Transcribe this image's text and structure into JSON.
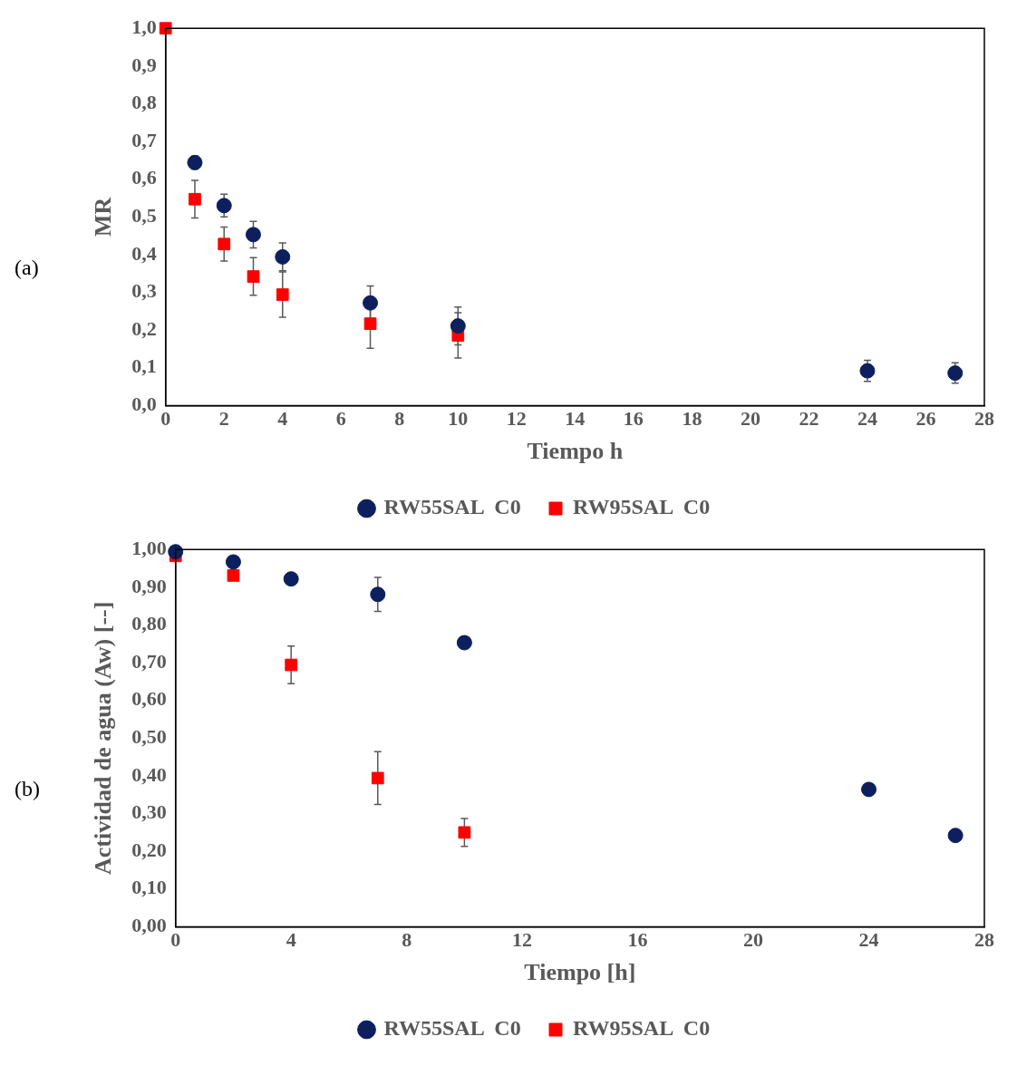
{
  "chart_data": [
    {
      "type": "scatter",
      "xlabel": "Tiempo h",
      "ylabel": "MR",
      "annotations": [
        "(a)"
      ],
      "legend": "bottom",
      "grid": false,
      "xlim": [
        0,
        28
      ],
      "xticks": [
        0,
        2,
        4,
        6,
        8,
        10,
        12,
        14,
        16,
        18,
        20,
        22,
        24,
        26,
        28
      ],
      "ylim": [
        0,
        1
      ],
      "yticks": [
        {
          "value": 0,
          "label": "0,0"
        },
        {
          "value": 0.1,
          "label": "0,1"
        },
        {
          "value": 0.2,
          "label": "0,2"
        },
        {
          "value": 0.3,
          "label": "0,3"
        },
        {
          "value": 0.4,
          "label": "0,4"
        },
        {
          "value": 0.5,
          "label": "0,5"
        },
        {
          "value": 0.6,
          "label": "0,6"
        },
        {
          "value": 0.7,
          "label": "0,7"
        },
        {
          "value": 0.8,
          "label": "0,8"
        },
        {
          "value": 0.9,
          "label": "0,9"
        },
        {
          "value": 1,
          "label": "1,0"
        }
      ],
      "series": [
        {
          "name": "RW55SAL  C0",
          "color": "#0d1f5c",
          "marker": "circle",
          "x": [
            1,
            2,
            3,
            4,
            7,
            10,
            24,
            27
          ],
          "values": [
            0.644,
            0.53,
            0.453,
            0.394,
            0.272,
            0.211,
            0.092,
            0.086
          ],
          "errors": [
            0.017,
            0.03,
            0.035,
            0.037,
            0.045,
            0.05,
            0.028,
            0.027
          ]
        },
        {
          "name": "RW95SAL  C0",
          "color": "#ff0000",
          "marker": "square",
          "x": [
            0,
            1,
            2,
            3,
            4,
            7,
            10
          ],
          "values": [
            1.0,
            0.547,
            0.428,
            0.342,
            0.294,
            0.217,
            0.186
          ],
          "errors": [
            null,
            0.05,
            0.045,
            0.05,
            0.06,
            0.065,
            0.06
          ]
        }
      ]
    },
    {
      "type": "scatter",
      "xlabel": "Tiempo [h]",
      "ylabel": "Actividad de agua (Aw) [--]",
      "annotations": [
        "(b)"
      ],
      "legend": "bottom",
      "grid": false,
      "x": [
        0,
        2,
        4,
        7,
        10,
        24,
        27
      ],
      "xlim": [
        0,
        28
      ],
      "xticks": [
        0,
        4,
        8,
        12,
        16,
        20,
        24,
        28
      ],
      "ylim": [
        0,
        1
      ],
      "yticks": [
        {
          "value": 0,
          "label": "0,00"
        },
        {
          "value": 0.1,
          "label": "0,10"
        },
        {
          "value": 0.2,
          "label": "0,20"
        },
        {
          "value": 0.3,
          "label": "0,30"
        },
        {
          "value": 0.4,
          "label": "0,40"
        },
        {
          "value": 0.5,
          "label": "0,50"
        },
        {
          "value": 0.6,
          "label": "0,60"
        },
        {
          "value": 0.7,
          "label": "0,70"
        },
        {
          "value": 0.8,
          "label": "0,80"
        },
        {
          "value": 0.9,
          "label": "0,90"
        },
        {
          "value": 1,
          "label": "1,00"
        }
      ],
      "series": [
        {
          "name": "RW55SAL  C0",
          "color": "#0d1f5c",
          "marker": "circle",
          "values": [
            0.994,
            0.967,
            0.922,
            0.881,
            0.753,
            0.364,
            0.242
          ],
          "errors": [
            null,
            null,
            null,
            0.045,
            null,
            null,
            null
          ]
        },
        {
          "name": "RW95SAL  C0",
          "color": "#ff0000",
          "marker": "square",
          "x": [
            0,
            2,
            4,
            7,
            10
          ],
          "values": [
            0.983,
            0.931,
            0.694,
            0.394,
            0.25
          ],
          "errors": [
            null,
            null,
            0.05,
            0.07,
            0.037
          ]
        }
      ]
    }
  ]
}
